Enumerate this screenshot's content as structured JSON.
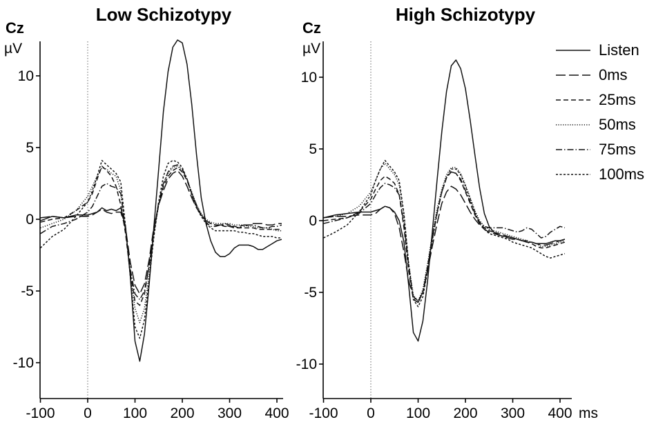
{
  "x_unit_label": "ms",
  "legend": {
    "entries": [
      {
        "name": "Listen",
        "style": "solid"
      },
      {
        "name": "0ms",
        "style": "longdash"
      },
      {
        "name": "25ms",
        "style": "dash"
      },
      {
        "name": "50ms",
        "style": "dot"
      },
      {
        "name": "75ms",
        "style": "dashdot"
      },
      {
        "name": "100ms",
        "style": "shortdot"
      }
    ]
  },
  "chart_data": [
    {
      "type": "line",
      "title": "Low Schizotypy",
      "electrode": "Cz",
      "ylabel": "µV",
      "xlim": [
        -100,
        410
      ],
      "ylim": [
        -12.2,
        12.6
      ],
      "xticks": [
        -100,
        0,
        100,
        200,
        300,
        400
      ],
      "yticks": [
        10,
        5,
        0,
        -5,
        -10
      ],
      "x": [
        -100,
        -75,
        -50,
        -25,
        0,
        10,
        20,
        30,
        40,
        50,
        60,
        70,
        80,
        90,
        100,
        110,
        120,
        130,
        140,
        150,
        160,
        170,
        180,
        190,
        200,
        210,
        220,
        230,
        240,
        250,
        260,
        270,
        280,
        290,
        300,
        310,
        320,
        330,
        340,
        350,
        360,
        370,
        380,
        390,
        400,
        410
      ],
      "series": [
        {
          "name": "Listen",
          "values": [
            -0.1,
            0.2,
            0.1,
            0.3,
            0.3,
            0.4,
            0.5,
            0.8,
            0.6,
            0.7,
            0.6,
            0.8,
            -0.5,
            -4.0,
            -8.5,
            -9.9,
            -8.0,
            -4.5,
            -0.5,
            3.5,
            7.5,
            10.3,
            12.0,
            12.5,
            12.3,
            10.8,
            8.0,
            4.5,
            1.5,
            -0.3,
            -1.5,
            -2.3,
            -2.6,
            -2.6,
            -2.4,
            -2.0,
            -1.8,
            -1.8,
            -1.8,
            -1.9,
            -2.1,
            -2.1,
            -1.9,
            -1.7,
            -1.5,
            -1.4
          ]
        },
        {
          "name": "0ms",
          "values": [
            0.1,
            0.2,
            0.1,
            0.2,
            0.2,
            0.3,
            0.5,
            0.7,
            0.5,
            0.4,
            0.5,
            0.5,
            -0.6,
            -3.0,
            -4.6,
            -5.2,
            -4.5,
            -2.8,
            -0.5,
            1.0,
            2.0,
            2.8,
            3.2,
            3.4,
            3.0,
            2.3,
            1.5,
            0.8,
            0.3,
            -0.1,
            -0.3,
            -0.4,
            -0.4,
            -0.4,
            -0.5,
            -0.5,
            -0.5,
            -0.4,
            -0.4,
            -0.3,
            -0.3,
            -0.3,
            -0.4,
            -0.4,
            -0.3,
            -0.3
          ]
        },
        {
          "name": "25ms",
          "values": [
            -0.2,
            0.0,
            0.1,
            0.6,
            1.2,
            1.8,
            2.8,
            3.7,
            3.4,
            3.0,
            2.3,
            1.0,
            -1.0,
            -3.8,
            -5.7,
            -6.0,
            -5.2,
            -3.2,
            -0.8,
            1.0,
            2.3,
            3.0,
            3.4,
            3.6,
            3.3,
            2.7,
            1.8,
            0.9,
            0.3,
            -0.1,
            -0.3,
            -0.4,
            -0.4,
            -0.5,
            -0.5,
            -0.6,
            -0.6,
            -0.6,
            -0.6,
            -0.6,
            -0.7,
            -0.7,
            -0.7,
            -0.7,
            -0.7,
            -0.7
          ]
        },
        {
          "name": "50ms",
          "values": [
            -0.6,
            -0.3,
            0.0,
            0.6,
            1.6,
            2.3,
            3.0,
            3.6,
            3.5,
            3.2,
            3.0,
            2.0,
            -0.8,
            -3.8,
            -6.2,
            -7.2,
            -6.2,
            -3.8,
            -1.0,
            1.0,
            2.5,
            3.2,
            3.6,
            3.7,
            3.4,
            2.8,
            1.9,
            1.0,
            0.4,
            0.0,
            -0.2,
            -0.3,
            -0.3,
            -0.3,
            -0.3,
            -0.4,
            -0.4,
            -0.4,
            -0.5,
            -0.5,
            -0.6,
            -0.6,
            -0.6,
            -0.7,
            -0.8,
            -0.8
          ]
        },
        {
          "name": "75ms",
          "values": [
            -1.0,
            -0.5,
            -0.3,
            0.0,
            0.5,
            0.9,
            1.6,
            2.3,
            2.5,
            2.3,
            2.2,
            1.8,
            -0.8,
            -3.5,
            -5.2,
            -5.6,
            -5.0,
            -3.2,
            -0.8,
            1.2,
            2.5,
            3.3,
            3.7,
            3.8,
            3.5,
            2.8,
            1.8,
            1.0,
            0.3,
            -0.2,
            -0.5,
            -0.5,
            -0.4,
            -0.3,
            -0.4,
            -0.5,
            -0.6,
            -0.5,
            -0.4,
            -0.4,
            -0.5,
            -0.6,
            -0.6,
            -0.5,
            -0.5,
            -0.4
          ]
        },
        {
          "name": "100ms",
          "values": [
            -2.0,
            -1.2,
            -0.7,
            0.2,
            1.2,
            2.0,
            3.0,
            4.1,
            3.8,
            3.5,
            3.2,
            2.6,
            -0.5,
            -4.0,
            -7.5,
            -8.3,
            -7.0,
            -4.2,
            -1.2,
            1.2,
            3.0,
            3.9,
            4.1,
            4.0,
            3.6,
            2.8,
            1.7,
            0.8,
            0.2,
            -0.3,
            -0.6,
            -0.8,
            -0.8,
            -0.8,
            -0.8,
            -0.8,
            -0.9,
            -0.9,
            -1.0,
            -1.0,
            -1.1,
            -1.2,
            -1.2,
            -1.2,
            -1.3,
            -1.3
          ]
        }
      ]
    },
    {
      "type": "line",
      "title": "High Schizotypy",
      "electrode": "Cz",
      "ylabel": "µV",
      "xlim": [
        -100,
        410
      ],
      "ylim": [
        -12.2,
        12.6
      ],
      "xticks": [
        -100,
        0,
        100,
        200,
        300,
        400
      ],
      "yticks": [
        10,
        5,
        0,
        -5,
        -10
      ],
      "x": [
        -100,
        -75,
        -50,
        -25,
        0,
        10,
        20,
        30,
        40,
        50,
        60,
        70,
        80,
        90,
        100,
        110,
        120,
        130,
        140,
        150,
        160,
        170,
        180,
        190,
        200,
        210,
        220,
        230,
        240,
        250,
        260,
        270,
        280,
        290,
        300,
        310,
        320,
        330,
        340,
        350,
        360,
        370,
        380,
        390,
        400,
        410
      ],
      "series": [
        {
          "name": "Listen",
          "values": [
            0.2,
            0.4,
            0.5,
            0.6,
            0.6,
            0.7,
            0.8,
            1.0,
            0.9,
            0.6,
            0.0,
            -1.5,
            -4.5,
            -7.8,
            -8.4,
            -7.0,
            -4.2,
            -0.8,
            2.8,
            6.2,
            9.0,
            10.8,
            11.2,
            10.6,
            9.2,
            7.0,
            4.6,
            2.3,
            0.5,
            -0.4,
            -0.8,
            -1.0,
            -1.1,
            -1.1,
            -1.2,
            -1.3,
            -1.4,
            -1.5,
            -1.5,
            -1.6,
            -1.6,
            -1.6,
            -1.5,
            -1.4,
            -1.4,
            -1.3
          ]
        },
        {
          "name": "0ms",
          "values": [
            0.2,
            0.3,
            0.3,
            0.4,
            0.4,
            0.5,
            0.8,
            1.0,
            0.9,
            0.5,
            -0.5,
            -2.2,
            -4.2,
            -5.3,
            -5.6,
            -5.0,
            -3.5,
            -1.8,
            -0.2,
            1.2,
            2.0,
            2.4,
            2.2,
            1.8,
            1.2,
            0.6,
            0.1,
            -0.3,
            -0.6,
            -0.8,
            -0.9,
            -1.0,
            -1.1,
            -1.2,
            -1.3,
            -1.3,
            -1.4,
            -1.4,
            -1.5,
            -1.6,
            -1.7,
            -1.7,
            -1.6,
            -1.5,
            -1.4,
            -1.3
          ]
        },
        {
          "name": "25ms",
          "values": [
            0.0,
            0.1,
            0.2,
            0.6,
            1.5,
            2.2,
            2.8,
            3.1,
            2.9,
            2.6,
            1.8,
            -0.5,
            -3.5,
            -5.5,
            -5.7,
            -5.0,
            -3.2,
            -1.2,
            0.6,
            2.0,
            3.0,
            3.4,
            3.3,
            2.8,
            2.0,
            1.2,
            0.4,
            -0.2,
            -0.5,
            -0.7,
            -0.8,
            -0.9,
            -1.0,
            -1.1,
            -1.2,
            -1.3,
            -1.4,
            -1.5,
            -1.6,
            -1.8,
            -1.9,
            -1.9,
            -1.8,
            -1.7,
            -1.6,
            -1.5
          ]
        },
        {
          "name": "50ms",
          "values": [
            0.2,
            0.3,
            0.5,
            1.0,
            2.0,
            2.8,
            3.6,
            4.0,
            3.6,
            3.2,
            2.5,
            0.3,
            -3.0,
            -5.2,
            -5.6,
            -4.8,
            -3.0,
            -1.0,
            0.8,
            2.2,
            3.2,
            3.7,
            3.7,
            3.3,
            2.5,
            1.6,
            0.7,
            0.0,
            -0.4,
            -0.6,
            -0.7,
            -0.8,
            -0.9,
            -1.0,
            -1.1,
            -1.2,
            -1.3,
            -1.4,
            -1.5,
            -1.6,
            -1.8,
            -1.8,
            -1.7,
            -1.6,
            -1.5,
            -1.4
          ]
        },
        {
          "name": "75ms",
          "values": [
            -0.2,
            0.0,
            0.2,
            0.5,
            1.2,
            1.8,
            2.3,
            2.6,
            2.5,
            2.3,
            1.8,
            -0.2,
            -3.2,
            -5.4,
            -5.7,
            -5.0,
            -3.3,
            -1.3,
            0.5,
            2.0,
            3.0,
            3.4,
            3.3,
            2.9,
            2.1,
            1.3,
            0.5,
            -0.1,
            -0.4,
            -0.5,
            -0.5,
            -0.5,
            -0.5,
            -0.6,
            -0.7,
            -0.8,
            -0.7,
            -0.5,
            -0.6,
            -0.9,
            -1.2,
            -1.1,
            -0.8,
            -0.6,
            -0.4,
            -0.5
          ]
        },
        {
          "name": "100ms",
          "values": [
            -1.2,
            -0.8,
            -0.3,
            0.6,
            1.8,
            2.8,
            3.6,
            4.2,
            3.8,
            3.4,
            2.8,
            0.5,
            -3.0,
            -5.5,
            -6.0,
            -5.3,
            -3.5,
            -1.4,
            0.5,
            2.0,
            3.0,
            3.6,
            3.6,
            3.2,
            2.4,
            1.5,
            0.6,
            -0.2,
            -0.6,
            -0.9,
            -1.0,
            -1.1,
            -1.2,
            -1.3,
            -1.5,
            -1.6,
            -1.7,
            -1.8,
            -1.9,
            -2.1,
            -2.3,
            -2.5,
            -2.6,
            -2.5,
            -2.4,
            -2.3
          ]
        }
      ]
    }
  ]
}
